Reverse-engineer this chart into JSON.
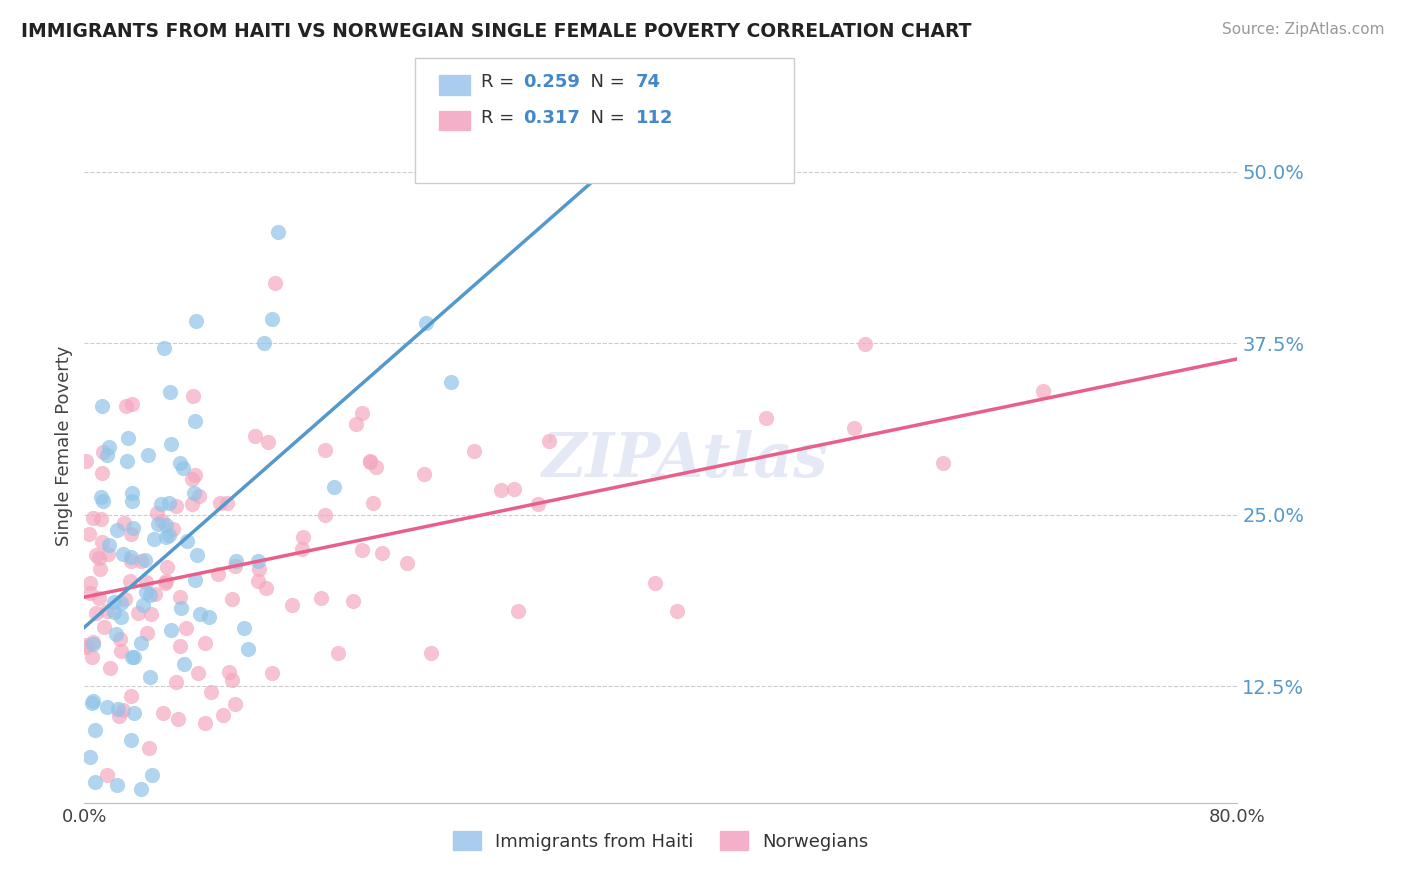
{
  "title": "IMMIGRANTS FROM HAITI VS NORWEGIAN SINGLE FEMALE POVERTY CORRELATION CHART",
  "source": "Source: ZipAtlas.com",
  "ylabel": "Single Female Poverty",
  "legend_label1": "Immigrants from Haiti",
  "legend_label2": "Norwegians",
  "blue_scatter_color": "#90c4e8",
  "pink_scatter_color": "#f4a8c0",
  "blue_line_color": "#5599cc",
  "pink_line_color": "#e8608a",
  "ytick_color": "#5599cc",
  "yticks": [
    0.125,
    0.25,
    0.375,
    0.5
  ],
  "ytick_labels": [
    "12.5%",
    "25.0%",
    "37.5%",
    "50.0%"
  ],
  "xlim": [
    0.0,
    0.8
  ],
  "ylim": [
    0.04,
    0.56
  ],
  "R_blue": 0.259,
  "N_blue": 74,
  "R_pink": 0.317,
  "N_pink": 112,
  "watermark": "ZIPAtlas",
  "legend_R1": "0.259",
  "legend_N1": "74",
  "legend_R2": "0.317",
  "legend_N2": "112"
}
